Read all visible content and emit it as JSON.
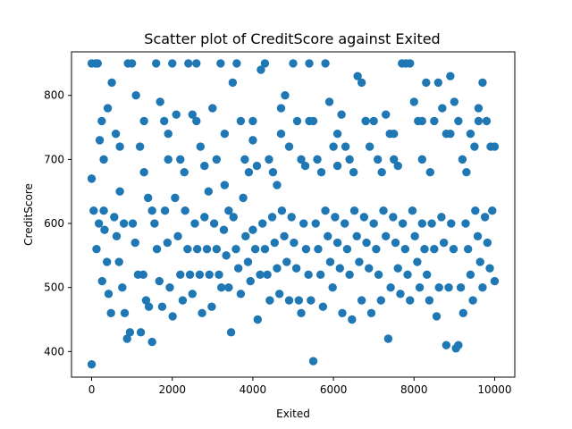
{
  "chart_data": {
    "type": "scatter",
    "title": "Scatter plot of CreditScore against Exited",
    "xlabel": "Exited",
    "ylabel": "CreditScore",
    "xlim": [
      -500,
      10500
    ],
    "ylim": [
      360,
      868
    ],
    "xticks": [
      0,
      2000,
      4000,
      6000,
      8000,
      10000
    ],
    "yticks": [
      400,
      500,
      600,
      700,
      800
    ],
    "grid": false,
    "marker_color": "#1f77b4",
    "points": [
      [
        0,
        850
      ],
      [
        100,
        850
      ],
      [
        150,
        850
      ],
      [
        200,
        730
      ],
      [
        250,
        760
      ],
      [
        300,
        700
      ],
      [
        400,
        780
      ],
      [
        500,
        820
      ],
      [
        600,
        740
      ],
      [
        700,
        650
      ],
      [
        800,
        600
      ],
      [
        900,
        850
      ],
      [
        1000,
        850
      ],
      [
        1100,
        800
      ],
      [
        1200,
        720
      ],
      [
        1300,
        680
      ],
      [
        1400,
        640
      ],
      [
        1500,
        620
      ],
      [
        1600,
        850
      ],
      [
        1700,
        790
      ],
      [
        1800,
        760
      ],
      [
        1900,
        700
      ],
      [
        2000,
        850
      ],
      [
        2100,
        770
      ],
      [
        2200,
        700
      ],
      [
        2300,
        680
      ],
      [
        2400,
        850
      ],
      [
        2500,
        770
      ],
      [
        2600,
        850
      ],
      [
        2700,
        720
      ],
      [
        2800,
        690
      ],
      [
        2900,
        650
      ],
      [
        3000,
        780
      ],
      [
        3100,
        700
      ],
      [
        3200,
        850
      ],
      [
        3300,
        660
      ],
      [
        3400,
        620
      ],
      [
        3500,
        820
      ],
      [
        3600,
        850
      ],
      [
        3700,
        760
      ],
      [
        3800,
        700
      ],
      [
        3900,
        680
      ],
      [
        4000,
        730
      ],
      [
        4100,
        690
      ],
      [
        4200,
        840
      ],
      [
        4300,
        850
      ],
      [
        4400,
        700
      ],
      [
        4500,
        680
      ],
      [
        4600,
        660
      ],
      [
        4700,
        780
      ],
      [
        4800,
        800
      ],
      [
        4900,
        720
      ],
      [
        5000,
        850
      ],
      [
        5100,
        760
      ],
      [
        5200,
        700
      ],
      [
        5300,
        690
      ],
      [
        5400,
        850
      ],
      [
        5500,
        760
      ],
      [
        5600,
        700
      ],
      [
        5700,
        680
      ],
      [
        5800,
        850
      ],
      [
        5900,
        790
      ],
      [
        6000,
        720
      ],
      [
        6100,
        690
      ],
      [
        6200,
        770
      ],
      [
        6300,
        720
      ],
      [
        6400,
        700
      ],
      [
        6500,
        680
      ],
      [
        6600,
        830
      ],
      [
        6700,
        820
      ],
      [
        6800,
        760
      ],
      [
        6900,
        720
      ],
      [
        7000,
        760
      ],
      [
        7100,
        700
      ],
      [
        7200,
        680
      ],
      [
        7300,
        770
      ],
      [
        7400,
        740
      ],
      [
        7500,
        700
      ],
      [
        7600,
        690
      ],
      [
        7700,
        850
      ],
      [
        7800,
        850
      ],
      [
        7900,
        850
      ],
      [
        8000,
        790
      ],
      [
        8100,
        760
      ],
      [
        8200,
        700
      ],
      [
        8300,
        820
      ],
      [
        8400,
        680
      ],
      [
        8500,
        760
      ],
      [
        8600,
        820
      ],
      [
        8700,
        780
      ],
      [
        8800,
        740
      ],
      [
        8900,
        830
      ],
      [
        9000,
        790
      ],
      [
        9100,
        760
      ],
      [
        9200,
        700
      ],
      [
        9300,
        680
      ],
      [
        9400,
        740
      ],
      [
        9500,
        720
      ],
      [
        9600,
        780
      ],
      [
        9700,
        820
      ],
      [
        9800,
        760
      ],
      [
        9900,
        720
      ],
      [
        10000,
        720
      ],
      [
        0,
        670
      ],
      [
        50,
        620
      ],
      [
        120,
        560
      ],
      [
        180,
        600
      ],
      [
        260,
        510
      ],
      [
        320,
        590
      ],
      [
        380,
        540
      ],
      [
        420,
        490
      ],
      [
        480,
        460
      ],
      [
        560,
        610
      ],
      [
        620,
        580
      ],
      [
        680,
        540
      ],
      [
        760,
        500
      ],
      [
        820,
        460
      ],
      [
        880,
        420
      ],
      [
        950,
        430
      ],
      [
        1020,
        600
      ],
      [
        1080,
        570
      ],
      [
        1150,
        520
      ],
      [
        1220,
        430
      ],
      [
        1280,
        520
      ],
      [
        1350,
        480
      ],
      [
        1420,
        470
      ],
      [
        1500,
        415
      ],
      [
        1560,
        600
      ],
      [
        1620,
        560
      ],
      [
        1680,
        510
      ],
      [
        1750,
        470
      ],
      [
        1820,
        620
      ],
      [
        1880,
        570
      ],
      [
        1940,
        500
      ],
      [
        2010,
        455
      ],
      [
        2070,
        640
      ],
      [
        2140,
        580
      ],
      [
        2200,
        520
      ],
      [
        2260,
        480
      ],
      [
        2320,
        620
      ],
      [
        2380,
        560
      ],
      [
        2440,
        520
      ],
      [
        2500,
        490
      ],
      [
        2560,
        600
      ],
      [
        2620,
        560
      ],
      [
        2680,
        520
      ],
      [
        2740,
        460
      ],
      [
        2800,
        610
      ],
      [
        2860,
        560
      ],
      [
        2920,
        520
      ],
      [
        2980,
        470
      ],
      [
        3040,
        600
      ],
      [
        3100,
        560
      ],
      [
        3160,
        520
      ],
      [
        3220,
        500
      ],
      [
        3280,
        590
      ],
      [
        3340,
        550
      ],
      [
        3400,
        500
      ],
      [
        3460,
        430
      ],
      [
        3520,
        610
      ],
      [
        3580,
        560
      ],
      [
        3640,
        530
      ],
      [
        3700,
        490
      ],
      [
        3760,
        640
      ],
      [
        3820,
        580
      ],
      [
        3880,
        540
      ],
      [
        3940,
        510
      ],
      [
        4000,
        590
      ],
      [
        4060,
        560
      ],
      [
        4120,
        450
      ],
      [
        4180,
        520
      ],
      [
        4240,
        600
      ],
      [
        4300,
        560
      ],
      [
        4360,
        520
      ],
      [
        4420,
        480
      ],
      [
        4480,
        610
      ],
      [
        4540,
        570
      ],
      [
        4600,
        530
      ],
      [
        4660,
        490
      ],
      [
        4720,
        620
      ],
      [
        4780,
        580
      ],
      [
        4840,
        540
      ],
      [
        4900,
        480
      ],
      [
        4960,
        610
      ],
      [
        5020,
        570
      ],
      [
        5080,
        530
      ],
      [
        5140,
        480
      ],
      [
        5200,
        460
      ],
      [
        5260,
        600
      ],
      [
        5320,
        560
      ],
      [
        5380,
        520
      ],
      [
        5440,
        480
      ],
      [
        5500,
        385
      ],
      [
        5560,
        600
      ],
      [
        5620,
        560
      ],
      [
        5680,
        520
      ],
      [
        5740,
        470
      ],
      [
        5800,
        620
      ],
      [
        5860,
        580
      ],
      [
        5920,
        540
      ],
      [
        5980,
        500
      ],
      [
        6040,
        610
      ],
      [
        6100,
        570
      ],
      [
        6160,
        530
      ],
      [
        6220,
        460
      ],
      [
        6280,
        600
      ],
      [
        6340,
        560
      ],
      [
        6400,
        520
      ],
      [
        6460,
        450
      ],
      [
        6520,
        620
      ],
      [
        6580,
        580
      ],
      [
        6640,
        540
      ],
      [
        6700,
        480
      ],
      [
        6760,
        610
      ],
      [
        6820,
        570
      ],
      [
        6880,
        530
      ],
      [
        6940,
        460
      ],
      [
        7000,
        600
      ],
      [
        7060,
        560
      ],
      [
        7120,
        520
      ],
      [
        7180,
        480
      ],
      [
        7240,
        620
      ],
      [
        7300,
        580
      ],
      [
        7360,
        420
      ],
      [
        7420,
        500
      ],
      [
        7480,
        610
      ],
      [
        7540,
        570
      ],
      [
        7600,
        530
      ],
      [
        7660,
        490
      ],
      [
        7720,
        600
      ],
      [
        7780,
        560
      ],
      [
        7840,
        520
      ],
      [
        7900,
        480
      ],
      [
        7960,
        620
      ],
      [
        8020,
        580
      ],
      [
        8080,
        540
      ],
      [
        8140,
        500
      ],
      [
        8200,
        600
      ],
      [
        8260,
        560
      ],
      [
        8320,
        520
      ],
      [
        8380,
        480
      ],
      [
        8440,
        600
      ],
      [
        8500,
        560
      ],
      [
        8560,
        455
      ],
      [
        8620,
        500
      ],
      [
        8680,
        610
      ],
      [
        8740,
        570
      ],
      [
        8800,
        410
      ],
      [
        8860,
        500
      ],
      [
        8920,
        600
      ],
      [
        8980,
        560
      ],
      [
        9040,
        405
      ],
      [
        9100,
        410
      ],
      [
        9160,
        500
      ],
      [
        9220,
        460
      ],
      [
        9280,
        600
      ],
      [
        9340,
        560
      ],
      [
        9400,
        520
      ],
      [
        9460,
        480
      ],
      [
        9520,
        620
      ],
      [
        9580,
        580
      ],
      [
        9640,
        540
      ],
      [
        9700,
        500
      ],
      [
        9760,
        610
      ],
      [
        9820,
        570
      ],
      [
        9880,
        530
      ],
      [
        9940,
        620
      ],
      [
        10000,
        510
      ],
      [
        0,
        380
      ],
      [
        300,
        620
      ],
      [
        700,
        720
      ],
      [
        1300,
        760
      ],
      [
        1900,
        740
      ],
      [
        2600,
        760
      ],
      [
        3300,
        740
      ],
      [
        4000,
        760
      ],
      [
        4700,
        740
      ],
      [
        5400,
        760
      ],
      [
        6100,
        740
      ],
      [
        6800,
        760
      ],
      [
        7500,
        740
      ],
      [
        8200,
        760
      ],
      [
        8900,
        740
      ],
      [
        9600,
        760
      ]
    ]
  }
}
